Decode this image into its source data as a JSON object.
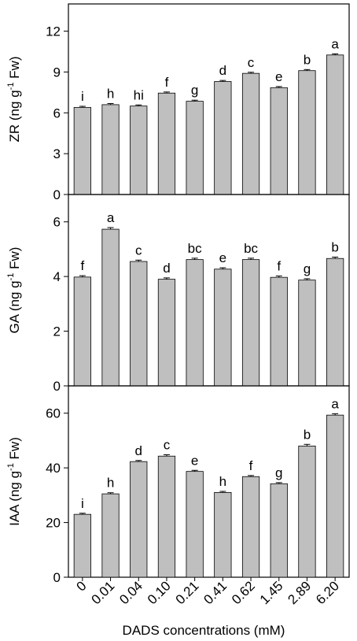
{
  "chart_data": {
    "type": "bar",
    "bar_color": "#bfbfbf",
    "categories": [
      "0",
      "0.01",
      "0.04",
      "0.10",
      "0.21",
      "0.41",
      "0.62",
      "1.45",
      "2.89",
      "6.20"
    ],
    "xlabel": "DADS concentrations (mM)",
    "panels": [
      {
        "name": "ZR",
        "ylabel_prefix": "ZR (ng g",
        "ylabel_sup": "-1",
        "ylabel_suffix": " Fw)",
        "ylim": [
          0,
          14
        ],
        "yticks": [
          "0",
          "3",
          "6",
          "9",
          "12"
        ],
        "values": [
          6.4,
          6.6,
          6.5,
          7.45,
          6.85,
          8.3,
          8.9,
          7.85,
          9.1,
          10.25
        ],
        "errors": [
          0.08,
          0.08,
          0.08,
          0.08,
          0.08,
          0.08,
          0.08,
          0.08,
          0.08,
          0.08
        ],
        "letters": [
          "i",
          "h",
          "hi",
          "f",
          "g",
          "d",
          "c",
          "e",
          "b",
          "a"
        ]
      },
      {
        "name": "GA",
        "ylabel_prefix": "GA (ng g",
        "ylabel_sup": "-1",
        "ylabel_suffix": " Fw)",
        "ylim": [
          0,
          7
        ],
        "yticks": [
          "0",
          "2",
          "4",
          "6"
        ],
        "values": [
          3.98,
          5.73,
          4.55,
          3.9,
          4.62,
          4.27,
          4.62,
          3.97,
          3.87,
          4.66
        ],
        "errors": [
          0.05,
          0.06,
          0.05,
          0.05,
          0.05,
          0.05,
          0.05,
          0.05,
          0.05,
          0.05
        ],
        "letters": [
          "f",
          "a",
          "c",
          "d",
          "bc",
          "e",
          "bc",
          "f",
          "g",
          "b"
        ]
      },
      {
        "name": "IAA",
        "ylabel_prefix": "IAA (ng g",
        "ylabel_sup": "-1",
        "ylabel_suffix": " Fw)",
        "ylim": [
          0,
          70
        ],
        "yticks": [
          "0",
          "20",
          "40",
          "60"
        ],
        "values": [
          23,
          30.5,
          42.3,
          44.3,
          38.7,
          31,
          36.8,
          34.2,
          48,
          59.3
        ],
        "errors": [
          0.4,
          0.4,
          0.4,
          0.5,
          0.4,
          0.4,
          0.4,
          0.4,
          0.6,
          0.5
        ],
        "letters": [
          "i",
          "h",
          "d",
          "c",
          "e",
          "h",
          "f",
          "g",
          "b",
          "a"
        ]
      }
    ]
  }
}
